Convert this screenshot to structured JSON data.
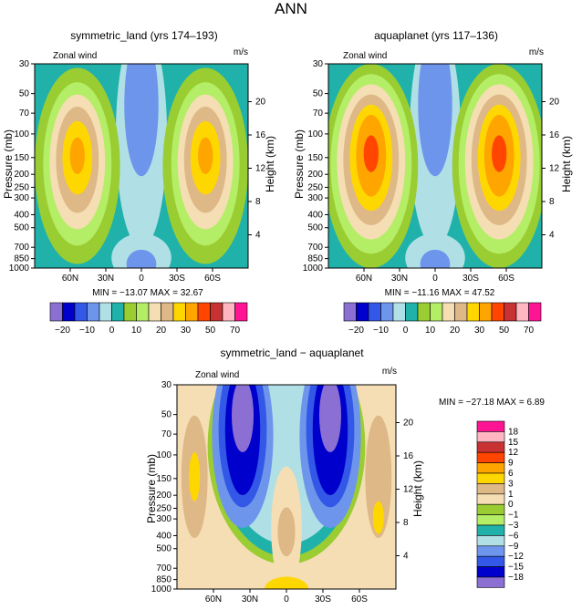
{
  "page_title": "ANN",
  "colors": {
    "neg20": "#8c6fd2",
    "neg15": "#0000cc",
    "neg10": "#3357e6",
    "neg5": "#6e95ec",
    "neg0": "#b0e0e6",
    "zero": "#20b2aa",
    "p5": "#9acd32",
    "p10": "#b3ee66",
    "p15": "#f5deb3",
    "p20": "#deb887",
    "p30": "#ffd700",
    "p40": "#ffa500",
    "p50": "#ff4500",
    "p60": "#c83232",
    "p70": "#ffb6c1",
    "p80": "#ff1493"
  },
  "chart_data": [
    {
      "type": "heatmap",
      "id": "panel-1",
      "title": "symmetric_land (yrs 174–193)",
      "subtitle_left": "Zonal wind",
      "subtitle_right": "m/s",
      "xlabel": "",
      "ylabel": "Pressure (mb)",
      "ylabel_right": "Height (km)",
      "x_ticks": [
        "60N",
        "30N",
        "0",
        "30S",
        "60S"
      ],
      "y_ticks": [
        "30",
        "50",
        "70",
        "100",
        "150",
        "200",
        "250",
        "300",
        "400",
        "500",
        "700",
        "850",
        "1000"
      ],
      "y_ticks_right": [
        "20",
        "16",
        "12",
        "8",
        "4"
      ],
      "stats": "MIN = −13.07   MAX =  32.67",
      "jet_max": 32.67,
      "min": -13.07
    },
    {
      "type": "heatmap",
      "id": "panel-2",
      "title": "aquaplanet (yrs 117–136)",
      "subtitle_left": "Zonal wind",
      "subtitle_right": "m/s",
      "xlabel": "",
      "ylabel": "Pressure (mb)",
      "ylabel_right": "Height (km)",
      "x_ticks": [
        "60N",
        "30N",
        "0",
        "30S",
        "60S"
      ],
      "y_ticks": [
        "30",
        "50",
        "70",
        "100",
        "150",
        "200",
        "250",
        "300",
        "400",
        "500",
        "700",
        "850",
        "1000"
      ],
      "y_ticks_right": [
        "20",
        "16",
        "12",
        "8",
        "4"
      ],
      "stats": "MIN = −11.16   MAX =  47.52",
      "jet_max": 47.52,
      "min": -11.16
    },
    {
      "type": "heatmap",
      "id": "panel-3",
      "title": "symmetric_land − aquaplanet",
      "subtitle_left": "Zonal wind",
      "subtitle_right": "m/s",
      "xlabel": "",
      "ylabel": "Pressure (mb)",
      "ylabel_right": "Height (km)",
      "x_ticks": [
        "60N",
        "30N",
        "0",
        "30S",
        "60S"
      ],
      "y_ticks": [
        "30",
        "50",
        "70",
        "100",
        "150",
        "200",
        "250",
        "300",
        "400",
        "500",
        "700",
        "850",
        "1000"
      ],
      "y_ticks_right": [
        "20",
        "16",
        "12",
        "8",
        "4"
      ],
      "stats": "MIN = −27.18   MAX =    6.89",
      "min": -27.18,
      "max": 6.89
    }
  ],
  "legend_top": {
    "labels": [
      "−20",
      "−10",
      "0",
      "10",
      "20",
      "30",
      "50",
      "70"
    ],
    "colors": [
      "#8c6fd2",
      "#0000cc",
      "#3357e6",
      "#6e95ec",
      "#b0e0e6",
      "#20b2aa",
      "#9acd32",
      "#b3ee66",
      "#f5deb3",
      "#deb887",
      "#ffd700",
      "#ffa500",
      "#ff4500",
      "#c83232",
      "#ffb6c1",
      "#ff1493"
    ]
  },
  "legend_diff": {
    "labels": [
      "18",
      "15",
      "12",
      "9",
      "6",
      "3",
      "1",
      "0",
      "−1",
      "−3",
      "−6",
      "−9",
      "−12",
      "−15",
      "−18"
    ],
    "colors": [
      "#ff1493",
      "#ffb6c1",
      "#c83232",
      "#ff4500",
      "#ffa500",
      "#ffd700",
      "#deb887",
      "#f5deb3",
      "#9acd32",
      "#b3ee66",
      "#20b2aa",
      "#b0e0e6",
      "#6e95ec",
      "#3357e6",
      "#0000cc",
      "#8c6fd2"
    ]
  }
}
